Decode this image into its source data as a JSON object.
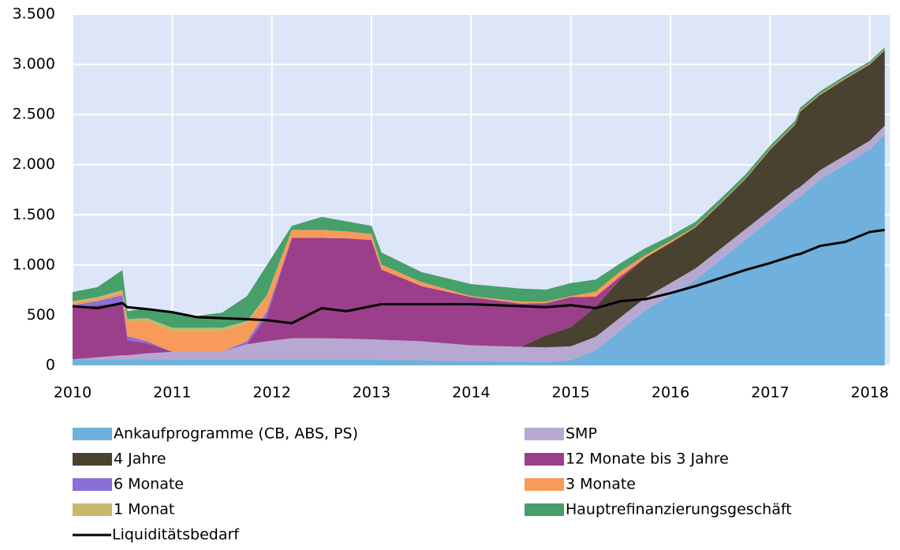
{
  "chart_data": {
    "type": "stacked_area",
    "x": [
      2010,
      2010.25,
      2010.5,
      2010.55,
      2010.75,
      2011,
      2011.25,
      2011.5,
      2011.75,
      2011.95,
      2012.2,
      2012.5,
      2012.75,
      2013,
      2013.1,
      2013.5,
      2014,
      2014.5,
      2014.75,
      2015,
      2015.25,
      2015.5,
      2015.75,
      2016,
      2016.25,
      2016.5,
      2016.75,
      2017,
      2017.25,
      2017.3,
      2017.5,
      2017.75,
      2018,
      2018.15
    ],
    "series": [
      {
        "name": "Ankaufprogramme (CB, ABS, PS)",
        "color": "#6fb0dc",
        "values": [
          60,
          60,
          60,
          60,
          60,
          60,
          60,
          60,
          60,
          60,
          60,
          60,
          60,
          60,
          55,
          50,
          40,
          35,
          30,
          50,
          150,
          350,
          550,
          700,
          850,
          1050,
          1250,
          1450,
          1650,
          1680,
          1850,
          2000,
          2150,
          2300
        ]
      },
      {
        "name": "SMP",
        "color": "#b7a8d2",
        "values": [
          0,
          20,
          40,
          40,
          60,
          75,
          75,
          75,
          150,
          180,
          210,
          210,
          205,
          200,
          200,
          190,
          160,
          150,
          150,
          140,
          135,
          130,
          125,
          120,
          115,
          110,
          105,
          100,
          98,
          98,
          95,
          92,
          90,
          90
        ]
      },
      {
        "name": "4 Jahre",
        "color": "#4a4230",
        "values": [
          0,
          0,
          0,
          0,
          0,
          0,
          0,
          0,
          0,
          0,
          0,
          0,
          0,
          0,
          0,
          0,
          0,
          0,
          120,
          190,
          300,
          380,
          400,
          400,
          410,
          450,
          500,
          600,
          650,
          750,
          750,
          760,
          760,
          750
        ]
      },
      {
        "name": "12 Monate bis 3 Jahre",
        "color": "#9c3f8a",
        "values": [
          520,
          520,
          520,
          150,
          100,
          0,
          0,
          0,
          0,
          250,
          1000,
          1000,
          1000,
          990,
          700,
          550,
          480,
          430,
          320,
          300,
          100,
          30,
          0,
          0,
          0,
          0,
          0,
          0,
          0,
          0,
          0,
          0,
          0,
          0
        ]
      },
      {
        "name": "6 Monate",
        "color": "#8a6fd8",
        "values": [
          20,
          40,
          80,
          40,
          20,
          0,
          0,
          0,
          30,
          50,
          0,
          0,
          0,
          0,
          0,
          0,
          0,
          0,
          0,
          0,
          0,
          0,
          0,
          0,
          0,
          0,
          0,
          0,
          0,
          0,
          0,
          0,
          0,
          0
        ]
      },
      {
        "name": "3 Monate",
        "color": "#f79a5a",
        "values": [
          20,
          20,
          30,
          150,
          200,
          200,
          200,
          200,
          180,
          150,
          80,
          80,
          70,
          60,
          50,
          40,
          10,
          20,
          15,
          10,
          50,
          50,
          25,
          20,
          10,
          10,
          10,
          10,
          10,
          10,
          10,
          10,
          10,
          10
        ]
      },
      {
        "name": "1 Monat",
        "color": "#c8b86c",
        "values": [
          20,
          20,
          20,
          20,
          30,
          40,
          40,
          40,
          20,
          10,
          0,
          0,
          0,
          0,
          0,
          0,
          0,
          0,
          0,
          0,
          0,
          0,
          0,
          0,
          0,
          0,
          0,
          0,
          0,
          0,
          0,
          0,
          0,
          0
        ]
      },
      {
        "name": "Hauptrefinanzierungsgeschäft",
        "color": "#47a06a",
        "values": [
          90,
          100,
          200,
          80,
          100,
          150,
          120,
          150,
          250,
          300,
          40,
          130,
          100,
          80,
          120,
          100,
          120,
          130,
          120,
          130,
          120,
          80,
          70,
          50,
          45,
          40,
          35,
          30,
          30,
          30,
          25,
          25,
          20,
          20
        ]
      }
    ],
    "line": {
      "name": "Liquiditätsbedarf",
      "color": "#000000",
      "values": [
        590,
        570,
        620,
        580,
        560,
        530,
        480,
        470,
        460,
        450,
        420,
        570,
        540,
        590,
        610,
        610,
        610,
        590,
        580,
        600,
        570,
        640,
        660,
        720,
        790,
        870,
        950,
        1020,
        1100,
        1110,
        1190,
        1230,
        1330,
        1350
      ]
    },
    "xlim": [
      2010,
      2018.2
    ],
    "xticks": [
      2010,
      2011,
      2012,
      2013,
      2014,
      2015,
      2016,
      2017,
      2018
    ],
    "ylim": [
      0,
      3500
    ],
    "yticks": [
      0,
      {
        "value": 500,
        "label": "500"
      },
      {
        "value": 1000,
        "label": "1.000"
      },
      {
        "value": 1500,
        "label": "1.500"
      },
      {
        "value": 2000,
        "label": "2.000"
      },
      {
        "value": 2500,
        "label": "2.500"
      },
      {
        "value": 3000,
        "label": "3.000"
      },
      {
        "value": 3500,
        "label": "3.500"
      }
    ],
    "grid": true,
    "plot_background": "#dce6f8"
  }
}
